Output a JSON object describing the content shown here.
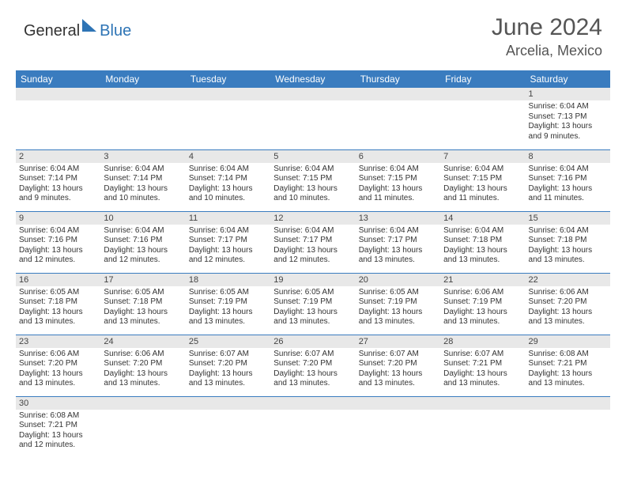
{
  "brand": {
    "general": "General",
    "blue": "Blue"
  },
  "title": "June 2024",
  "location": "Arcelia, Mexico",
  "colors": {
    "header_bg": "#3a7cbf",
    "header_text": "#ffffff",
    "daynum_bg": "#e8e8e8",
    "border": "#3a7cbf",
    "brand_blue": "#2e74b5"
  },
  "weekdays": [
    "Sunday",
    "Monday",
    "Tuesday",
    "Wednesday",
    "Thursday",
    "Friday",
    "Saturday"
  ],
  "weeks": [
    [
      null,
      null,
      null,
      null,
      null,
      null,
      {
        "n": "1",
        "sr": "Sunrise: 6:04 AM",
        "ss": "Sunset: 7:13 PM",
        "d1": "Daylight: 13 hours",
        "d2": "and 9 minutes."
      }
    ],
    [
      {
        "n": "2",
        "sr": "Sunrise: 6:04 AM",
        "ss": "Sunset: 7:14 PM",
        "d1": "Daylight: 13 hours",
        "d2": "and 9 minutes."
      },
      {
        "n": "3",
        "sr": "Sunrise: 6:04 AM",
        "ss": "Sunset: 7:14 PM",
        "d1": "Daylight: 13 hours",
        "d2": "and 10 minutes."
      },
      {
        "n": "4",
        "sr": "Sunrise: 6:04 AM",
        "ss": "Sunset: 7:14 PM",
        "d1": "Daylight: 13 hours",
        "d2": "and 10 minutes."
      },
      {
        "n": "5",
        "sr": "Sunrise: 6:04 AM",
        "ss": "Sunset: 7:15 PM",
        "d1": "Daylight: 13 hours",
        "d2": "and 10 minutes."
      },
      {
        "n": "6",
        "sr": "Sunrise: 6:04 AM",
        "ss": "Sunset: 7:15 PM",
        "d1": "Daylight: 13 hours",
        "d2": "and 11 minutes."
      },
      {
        "n": "7",
        "sr": "Sunrise: 6:04 AM",
        "ss": "Sunset: 7:15 PM",
        "d1": "Daylight: 13 hours",
        "d2": "and 11 minutes."
      },
      {
        "n": "8",
        "sr": "Sunrise: 6:04 AM",
        "ss": "Sunset: 7:16 PM",
        "d1": "Daylight: 13 hours",
        "d2": "and 11 minutes."
      }
    ],
    [
      {
        "n": "9",
        "sr": "Sunrise: 6:04 AM",
        "ss": "Sunset: 7:16 PM",
        "d1": "Daylight: 13 hours",
        "d2": "and 12 minutes."
      },
      {
        "n": "10",
        "sr": "Sunrise: 6:04 AM",
        "ss": "Sunset: 7:16 PM",
        "d1": "Daylight: 13 hours",
        "d2": "and 12 minutes."
      },
      {
        "n": "11",
        "sr": "Sunrise: 6:04 AM",
        "ss": "Sunset: 7:17 PM",
        "d1": "Daylight: 13 hours",
        "d2": "and 12 minutes."
      },
      {
        "n": "12",
        "sr": "Sunrise: 6:04 AM",
        "ss": "Sunset: 7:17 PM",
        "d1": "Daylight: 13 hours",
        "d2": "and 12 minutes."
      },
      {
        "n": "13",
        "sr": "Sunrise: 6:04 AM",
        "ss": "Sunset: 7:17 PM",
        "d1": "Daylight: 13 hours",
        "d2": "and 13 minutes."
      },
      {
        "n": "14",
        "sr": "Sunrise: 6:04 AM",
        "ss": "Sunset: 7:18 PM",
        "d1": "Daylight: 13 hours",
        "d2": "and 13 minutes."
      },
      {
        "n": "15",
        "sr": "Sunrise: 6:04 AM",
        "ss": "Sunset: 7:18 PM",
        "d1": "Daylight: 13 hours",
        "d2": "and 13 minutes."
      }
    ],
    [
      {
        "n": "16",
        "sr": "Sunrise: 6:05 AM",
        "ss": "Sunset: 7:18 PM",
        "d1": "Daylight: 13 hours",
        "d2": "and 13 minutes."
      },
      {
        "n": "17",
        "sr": "Sunrise: 6:05 AM",
        "ss": "Sunset: 7:18 PM",
        "d1": "Daylight: 13 hours",
        "d2": "and 13 minutes."
      },
      {
        "n": "18",
        "sr": "Sunrise: 6:05 AM",
        "ss": "Sunset: 7:19 PM",
        "d1": "Daylight: 13 hours",
        "d2": "and 13 minutes."
      },
      {
        "n": "19",
        "sr": "Sunrise: 6:05 AM",
        "ss": "Sunset: 7:19 PM",
        "d1": "Daylight: 13 hours",
        "d2": "and 13 minutes."
      },
      {
        "n": "20",
        "sr": "Sunrise: 6:05 AM",
        "ss": "Sunset: 7:19 PM",
        "d1": "Daylight: 13 hours",
        "d2": "and 13 minutes."
      },
      {
        "n": "21",
        "sr": "Sunrise: 6:06 AM",
        "ss": "Sunset: 7:19 PM",
        "d1": "Daylight: 13 hours",
        "d2": "and 13 minutes."
      },
      {
        "n": "22",
        "sr": "Sunrise: 6:06 AM",
        "ss": "Sunset: 7:20 PM",
        "d1": "Daylight: 13 hours",
        "d2": "and 13 minutes."
      }
    ],
    [
      {
        "n": "23",
        "sr": "Sunrise: 6:06 AM",
        "ss": "Sunset: 7:20 PM",
        "d1": "Daylight: 13 hours",
        "d2": "and 13 minutes."
      },
      {
        "n": "24",
        "sr": "Sunrise: 6:06 AM",
        "ss": "Sunset: 7:20 PM",
        "d1": "Daylight: 13 hours",
        "d2": "and 13 minutes."
      },
      {
        "n": "25",
        "sr": "Sunrise: 6:07 AM",
        "ss": "Sunset: 7:20 PM",
        "d1": "Daylight: 13 hours",
        "d2": "and 13 minutes."
      },
      {
        "n": "26",
        "sr": "Sunrise: 6:07 AM",
        "ss": "Sunset: 7:20 PM",
        "d1": "Daylight: 13 hours",
        "d2": "and 13 minutes."
      },
      {
        "n": "27",
        "sr": "Sunrise: 6:07 AM",
        "ss": "Sunset: 7:20 PM",
        "d1": "Daylight: 13 hours",
        "d2": "and 13 minutes."
      },
      {
        "n": "28",
        "sr": "Sunrise: 6:07 AM",
        "ss": "Sunset: 7:21 PM",
        "d1": "Daylight: 13 hours",
        "d2": "and 13 minutes."
      },
      {
        "n": "29",
        "sr": "Sunrise: 6:08 AM",
        "ss": "Sunset: 7:21 PM",
        "d1": "Daylight: 13 hours",
        "d2": "and 13 minutes."
      }
    ],
    [
      {
        "n": "30",
        "sr": "Sunrise: 6:08 AM",
        "ss": "Sunset: 7:21 PM",
        "d1": "Daylight: 13 hours",
        "d2": "and 12 minutes."
      },
      null,
      null,
      null,
      null,
      null,
      null
    ]
  ]
}
